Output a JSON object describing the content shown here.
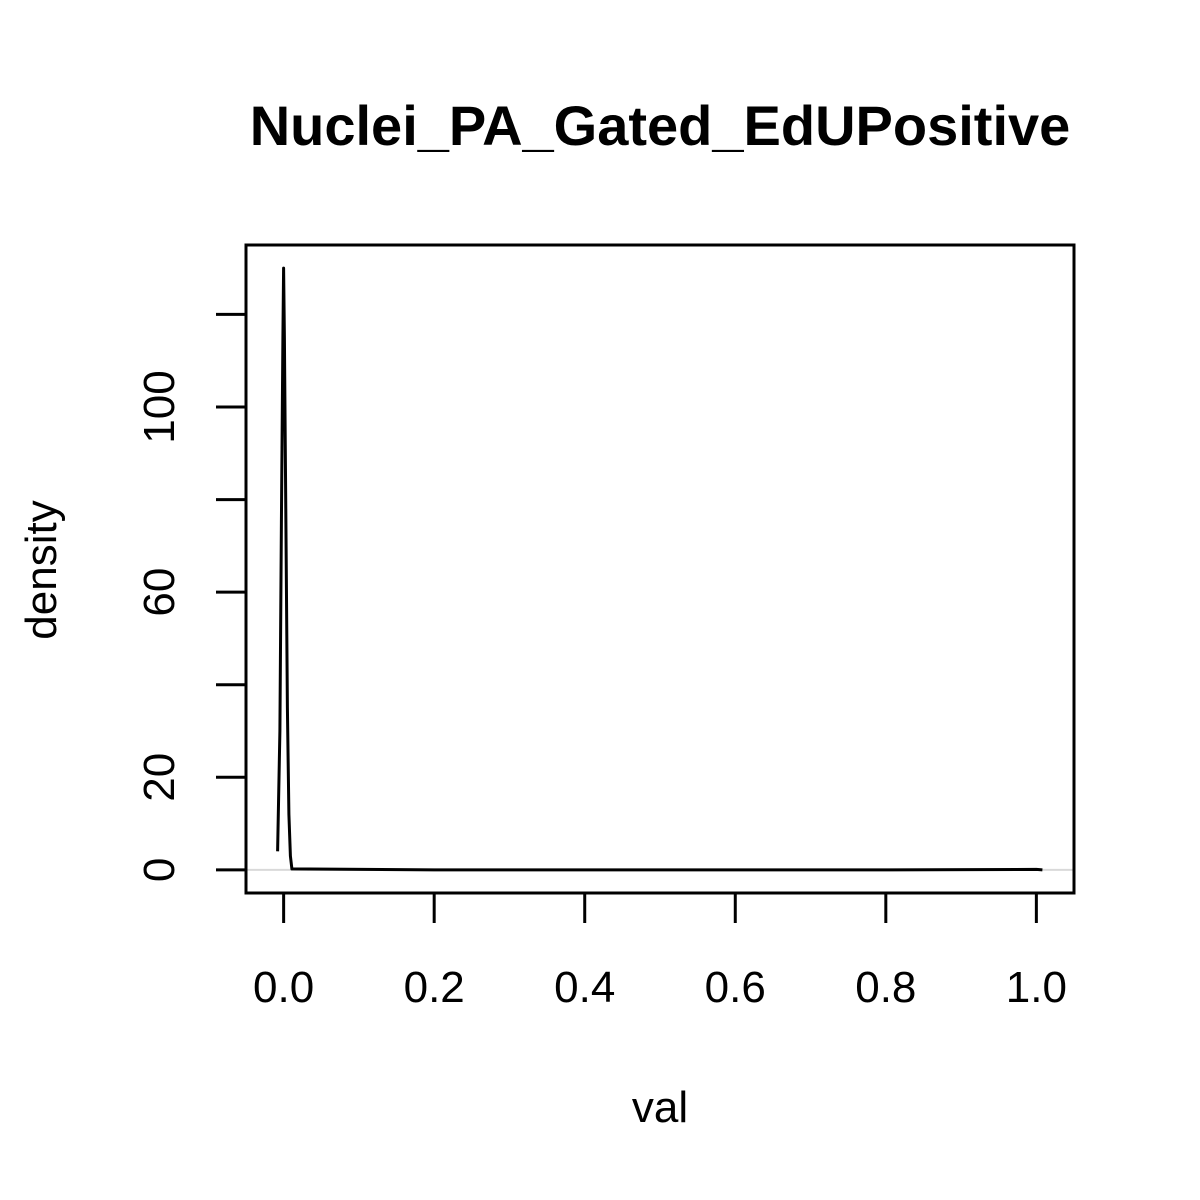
{
  "chart_data": {
    "type": "line",
    "title": "Nuclei_PA_Gated_EdUPositive",
    "xlabel": "val",
    "ylabel": "density",
    "xlim": [
      -0.05,
      1.05
    ],
    "ylim": [
      -5,
      135
    ],
    "x_ticks": [
      0.0,
      0.2,
      0.4,
      0.6,
      0.8,
      1.0
    ],
    "x_tick_labels": [
      "0.0",
      "0.2",
      "0.4",
      "0.6",
      "0.8",
      "1.0"
    ],
    "y_ticks": [
      0,
      20,
      40,
      60,
      80,
      100,
      120
    ],
    "y_tick_labels": [
      "0",
      "20",
      "",
      "60",
      "",
      "100",
      ""
    ],
    "grid": false,
    "baseline": 0,
    "series": [
      {
        "x": [
          -0.008,
          -0.005,
          -0.003,
          -0.001,
          0.0,
          0.001,
          0.003,
          0.005,
          0.007,
          0.009,
          0.011,
          0.2,
          0.4,
          0.6,
          0.8,
          1.0,
          1.008
        ],
        "y": [
          4,
          30,
          75,
          115,
          130,
          115,
          75,
          35,
          12,
          3,
          0.2,
          0,
          0,
          0,
          0,
          0.1,
          0
        ]
      }
    ],
    "colors": {
      "line": "#000000",
      "baseline": "#d9d9d9",
      "frame": "#000000"
    }
  }
}
